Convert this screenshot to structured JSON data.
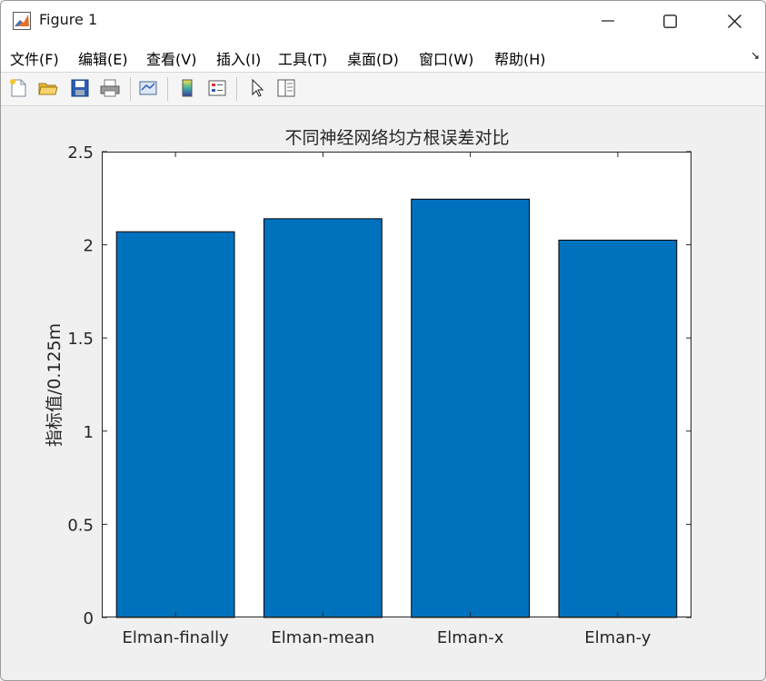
{
  "window": {
    "title": "Figure 1"
  },
  "menu": {
    "items": [
      "文件(F)",
      "编辑(E)",
      "查看(V)",
      "插入(I)",
      "工具(T)",
      "桌面(D)",
      "窗口(W)",
      "帮助(H)"
    ]
  },
  "toolbar": {
    "icons": [
      "new-figure-icon",
      "open-file-icon",
      "save-icon",
      "print-icon",
      "link-plot-icon",
      "colorbar-icon",
      "legend-icon",
      "pointer-icon",
      "property-inspector-icon"
    ]
  },
  "colors": {
    "bar": "#0072bd",
    "axes_bg": "#ffffff",
    "figure_bg": "#f0f0f0"
  },
  "chart_data": {
    "type": "bar",
    "title": "不同神经网络均方根误差对比",
    "xlabel": "",
    "ylabel": "指标值/0.125m",
    "categories": [
      "Elman-finally",
      "Elman-mean",
      "Elman-x",
      "Elman-y"
    ],
    "values": [
      2.07,
      2.14,
      2.245,
      2.025
    ],
    "ylim": [
      0,
      2.5
    ],
    "yticks": [
      0,
      0.5,
      1,
      1.5,
      2,
      2.5
    ],
    "ytick_labels": [
      "0",
      "0.5",
      "1",
      "1.5",
      "2",
      "2.5"
    ],
    "grid": false,
    "legend": "none"
  }
}
